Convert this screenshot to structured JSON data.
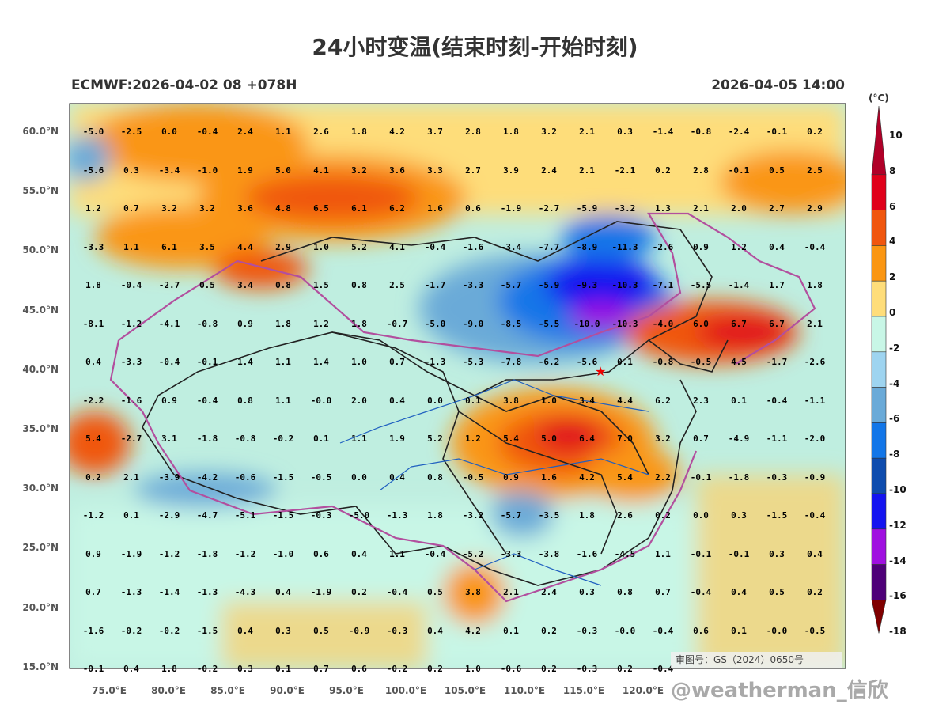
{
  "title": "24小时变温(结束时刻-开始时刻)",
  "subtitle_left": "ECMWF:2026-04-02 08 +078H",
  "subtitle_right": "2026-04-05 14:00",
  "approval": "审图号：GS（2024）0650号",
  "watermark": "@weatherman_信欣",
  "colorbar": {
    "unit": "(°C)",
    "labels": [
      "10",
      "8",
      "6",
      "4",
      "2",
      "0",
      "-2",
      "-4",
      "-6",
      "-8",
      "-10",
      "-12",
      "-14",
      "-16",
      "-18"
    ],
    "colors": [
      "#b00028",
      "#e0001a",
      "#f0560e",
      "#fa9612",
      "#fedd7a",
      "#c8f6e6",
      "#9ed4f0",
      "#6aaad8",
      "#1276e8",
      "#0e4cae",
      "#1414f0",
      "#a010e0",
      "#4e0078",
      "#800000"
    ]
  },
  "lat_labels": [
    "60.0°N",
    "55.0°N",
    "50.0°N",
    "45.0°N",
    "40.0°N",
    "35.0°N",
    "30.0°N",
    "25.0°N",
    "20.0°N",
    "15.0°N"
  ],
  "lon_labels": [
    "75.0°E",
    "80.0°E",
    "85.0°E",
    "90.0°E",
    "95.0°E",
    "100.0°E",
    "105.0°E",
    "110.0°E",
    "115.0°E",
    "120.0°E"
  ],
  "grid_values": [
    [
      "-5.0",
      "-2.5",
      "0.0",
      "-0.4",
      "2.4",
      "1.1",
      "2.6",
      "1.8",
      "4.2",
      "3.7",
      "2.8",
      "1.8",
      "3.2",
      "2.1",
      "0.3",
      "-1.4",
      "-0.8",
      "-2.4",
      "-0.1",
      "0.2"
    ],
    [
      "-5.6",
      "0.3",
      "-3.4",
      "-1.0",
      "1.9",
      "5.0",
      "4.1",
      "3.2",
      "3.6",
      "3.3",
      "2.7",
      "3.9",
      "2.4",
      "2.1",
      "-2.1",
      "0.2",
      "2.8",
      "-0.1",
      "0.5",
      "2.5"
    ],
    [
      "1.2",
      "0.7",
      "3.2",
      "3.2",
      "3.6",
      "4.8",
      "6.5",
      "6.1",
      "6.2",
      "1.6",
      "0.6",
      "-1.9",
      "-2.7",
      "-5.9",
      "-3.2",
      "1.3",
      "2.1",
      "2.0",
      "2.7",
      "2.9"
    ],
    [
      "-3.3",
      "1.1",
      "6.1",
      "3.5",
      "4.4",
      "2.9",
      "1.0",
      "5.2",
      "4.1",
      "-0.4",
      "-1.6",
      "-3.4",
      "-7.7",
      "-8.9",
      "-11.3",
      "-2.6",
      "0.9",
      "1.2",
      "0.4",
      "-0.4"
    ],
    [
      "1.8",
      "-0.4",
      "-2.7",
      "0.5",
      "3.4",
      "0.8",
      "1.5",
      "0.8",
      "2.5",
      "-1.7",
      "-3.3",
      "-5.7",
      "-5.9",
      "-9.3",
      "-10.3",
      "-7.1",
      "-5.5",
      "-1.4",
      "1.7",
      "1.8"
    ],
    [
      "-8.1",
      "-1.2",
      "-4.1",
      "-0.8",
      "0.9",
      "1.8",
      "1.2",
      "1.8",
      "-0.7",
      "-5.0",
      "-9.0",
      "-8.5",
      "-5.5",
      "-10.0",
      "-10.3",
      "-4.0",
      "6.0",
      "6.7",
      "6.7",
      "2.1"
    ],
    [
      "0.4",
      "-3.3",
      "-0.4",
      "-0.1",
      "1.4",
      "1.1",
      "1.4",
      "1.0",
      "0.7",
      "-1.3",
      "-5.3",
      "-7.8",
      "-6.2",
      "-5.6",
      "0.1",
      "-0.8",
      "-0.5",
      "4.5",
      "-1.7",
      "-2.6"
    ],
    [
      "-2.2",
      "-1.6",
      "0.9",
      "-0.4",
      "0.8",
      "1.1",
      "-0.0",
      "2.0",
      "0.4",
      "0.0",
      "0.1",
      "3.8",
      "1.0",
      "3.4",
      "4.4",
      "6.2",
      "2.3",
      "0.1",
      "-0.4",
      "-1.1"
    ],
    [
      "5.4",
      "-2.7",
      "3.1",
      "-1.8",
      "-0.8",
      "-0.2",
      "0.1",
      "1.1",
      "1.9",
      "5.2",
      "1.2",
      "5.4",
      "5.0",
      "6.4",
      "7.0",
      "3.2",
      "0.7",
      "-4.9",
      "-1.1",
      "-2.0"
    ],
    [
      "0.2",
      "2.1",
      "-3.9",
      "-4.2",
      "-0.6",
      "-1.5",
      "-0.5",
      "0.0",
      "0.4",
      "0.8",
      "-0.5",
      "0.9",
      "1.6",
      "4.2",
      "5.4",
      "2.2",
      "-0.1",
      "-1.8",
      "-0.3",
      "-0.9"
    ],
    [
      "-1.2",
      "0.1",
      "-2.9",
      "-4.7",
      "-5.1",
      "-1.5",
      "-0.3",
      "-5.0",
      "-1.3",
      "1.8",
      "-3.2",
      "-5.7",
      "-3.5",
      "1.8",
      "2.6",
      "0.2",
      "0.0",
      "0.3",
      "-1.5",
      "-0.4"
    ],
    [
      "0.9",
      "-1.9",
      "-1.2",
      "-1.8",
      "-1.2",
      "-1.0",
      "0.6",
      "0.4",
      "1.1",
      "-0.4",
      "-5.2",
      "-3.3",
      "-3.8",
      "-1.6",
      "-4.5",
      "1.1",
      "-0.1",
      "-0.1",
      "0.3",
      "0.4"
    ],
    [
      "0.7",
      "-1.3",
      "-1.4",
      "-1.3",
      "-4.3",
      "0.4",
      "-1.9",
      "0.2",
      "-0.4",
      "0.5",
      "3.8",
      "2.1",
      "2.4",
      "0.3",
      "0.8",
      "0.7",
      "-0.4",
      "0.4",
      "0.5",
      "0.2"
    ],
    [
      "-1.6",
      "-0.2",
      "-0.2",
      "-1.5",
      "0.4",
      "0.3",
      "0.5",
      "-0.9",
      "-0.3",
      "0.4",
      "4.2",
      "0.1",
      "0.2",
      "-0.3",
      "-0.0",
      "-0.4",
      "0.6",
      "0.1",
      "-0.0",
      "-0.5"
    ],
    [
      "-0.1",
      "0.4",
      "1.8",
      "-0.2",
      "0.3",
      "0.1",
      "0.7",
      "0.6",
      "-0.2",
      "0.2",
      "1.0",
      "-0.6",
      "0.2",
      "-0.3",
      "0.2",
      "-0.4",
      "",
      "",
      "",
      ""
    ]
  ]
}
